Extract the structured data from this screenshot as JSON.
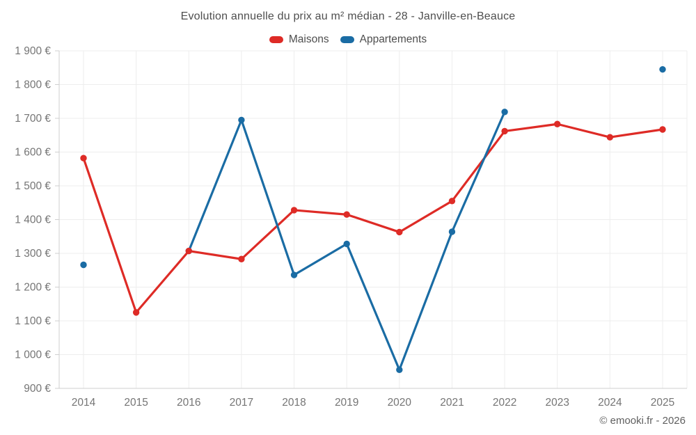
{
  "header": {
    "title": "Evolution annuelle du prix au m² médian - 28 - Janville-en-Beauce"
  },
  "footer": {
    "copyright": "© emooki.fr - 2026"
  },
  "chart_data": {
    "type": "line",
    "title": "Evolution annuelle du prix au m² médian - 28 - Janville-en-Beauce",
    "xlabel": "",
    "ylabel": "",
    "x": [
      2014,
      2015,
      2016,
      2017,
      2018,
      2019,
      2020,
      2021,
      2022,
      2023,
      2024,
      2025
    ],
    "series": [
      {
        "name": "Maisons",
        "color": "#de2b26",
        "values": [
          1582,
          1125,
          1307,
          1283,
          1428,
          1415,
          1363,
          1455,
          1662,
          1683,
          1644,
          1667
        ]
      },
      {
        "name": "Appartements",
        "color": "#1a6ca4",
        "values": [
          1266,
          null,
          1307,
          1695,
          1236,
          1328,
          955,
          1364,
          1719,
          null,
          null,
          1845
        ]
      }
    ],
    "ylim": [
      900,
      1900
    ],
    "ytick_step": 100,
    "y_suffix": "€",
    "grid": true,
    "legend_position": "top"
  }
}
